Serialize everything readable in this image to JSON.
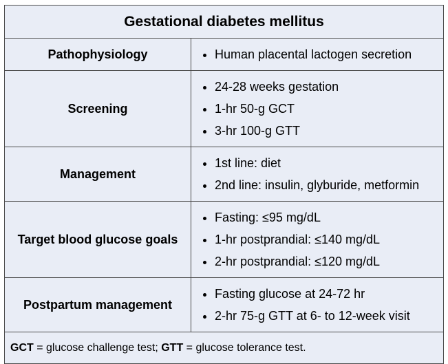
{
  "table": {
    "title": "Gestational diabetes mellitus",
    "rows": [
      {
        "label": "Pathophysiology",
        "items": [
          "Human placental lactogen secretion"
        ]
      },
      {
        "label": "Screening",
        "items": [
          "24-28 weeks gestation",
          "1-hr 50-g GCT",
          "3-hr 100-g GTT"
        ]
      },
      {
        "label": "Management",
        "items": [
          "1st line: diet",
          "2nd line: insulin, glyburide, metformin"
        ]
      },
      {
        "label": "Target blood glucose goals",
        "items": [
          "Fasting: ≤95 mg/dL",
          "1-hr postprandial: ≤140 mg/dL",
          "2-hr postprandial: ≤120 mg/dL"
        ]
      },
      {
        "label": "Postpartum management",
        "items": [
          "Fasting glucose at 24-72 hr",
          "2-hr 75-g GTT at 6- to 12-week visit"
        ]
      }
    ],
    "footnote": [
      {
        "abbr": "GCT",
        "text": " = glucose challenge test; "
      },
      {
        "abbr": "GTT",
        "text": " = glucose tolerance test."
      }
    ]
  }
}
